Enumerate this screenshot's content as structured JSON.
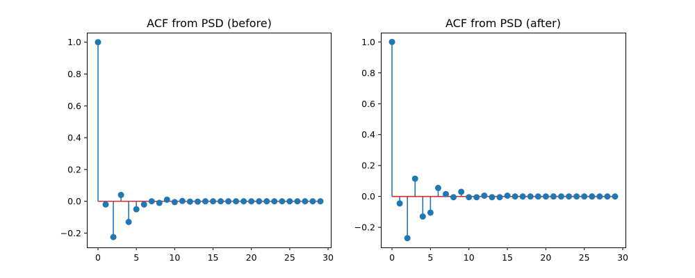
{
  "colors": {
    "stem": "#1f77b4",
    "baseline": "#d62728"
  },
  "chart_data": [
    {
      "type": "stem",
      "title": "ACF from PSD (before)",
      "xlabel": "",
      "ylabel": "",
      "xlim": [
        -1.45,
        30.45
      ],
      "ylim": [
        -0.29,
        1.06
      ],
      "xticks": [
        0,
        5,
        10,
        15,
        20,
        25,
        30
      ],
      "xtick_labels": [
        "0",
        "5",
        "10",
        "15",
        "20",
        "25",
        "30"
      ],
      "yticks": [
        -0.2,
        0.0,
        0.2,
        0.4,
        0.6,
        0.8,
        1.0
      ],
      "ytick_labels": [
        "−0.2",
        "0.0",
        "0.2",
        "0.4",
        "0.6",
        "0.8",
        "1.0"
      ],
      "grid": false,
      "x": [
        0,
        1,
        2,
        3,
        4,
        5,
        6,
        7,
        8,
        9,
        10,
        11,
        12,
        13,
        14,
        15,
        16,
        17,
        18,
        19,
        20,
        21,
        22,
        23,
        24,
        25,
        26,
        27,
        28,
        29
      ],
      "values": [
        1.0,
        -0.02,
        -0.225,
        0.04,
        -0.13,
        -0.05,
        -0.02,
        0.0,
        -0.01,
        0.01,
        -0.005,
        0.002,
        -0.002,
        -0.002,
        0.0,
        0.0,
        0.0,
        0.0,
        0.0,
        0.0,
        0.0,
        0.0,
        0.0,
        0.0,
        0.0,
        0.0,
        0.0,
        0.0,
        0.0,
        0.0
      ]
    },
    {
      "type": "stem",
      "title": "ACF from PSD (after)",
      "xlabel": "",
      "ylabel": "",
      "xlim": [
        -1.45,
        30.45
      ],
      "ylim": [
        -0.33,
        1.06
      ],
      "xticks": [
        0,
        5,
        10,
        15,
        20,
        25,
        30
      ],
      "xtick_labels": [
        "0",
        "5",
        "10",
        "15",
        "20",
        "25",
        "30"
      ],
      "yticks": [
        -0.2,
        0.0,
        0.2,
        0.4,
        0.6,
        0.8,
        1.0
      ],
      "ytick_labels": [
        "−0.2",
        "0.0",
        "0.2",
        "0.4",
        "0.6",
        "0.8",
        "1.0"
      ],
      "grid": false,
      "x": [
        0,
        1,
        2,
        3,
        4,
        5,
        6,
        7,
        8,
        9,
        10,
        11,
        12,
        13,
        14,
        15,
        16,
        17,
        18,
        19,
        20,
        21,
        22,
        23,
        24,
        25,
        26,
        27,
        28,
        29
      ],
      "values": [
        1.0,
        -0.045,
        -0.27,
        0.115,
        -0.13,
        -0.105,
        0.055,
        0.015,
        -0.005,
        0.03,
        -0.005,
        -0.005,
        0.005,
        -0.005,
        -0.005,
        0.005,
        0.0,
        0.0,
        0.0,
        0.0,
        0.0,
        0.0,
        0.0,
        0.0,
        0.0,
        0.0,
        0.0,
        0.0,
        0.0,
        0.0
      ]
    }
  ]
}
